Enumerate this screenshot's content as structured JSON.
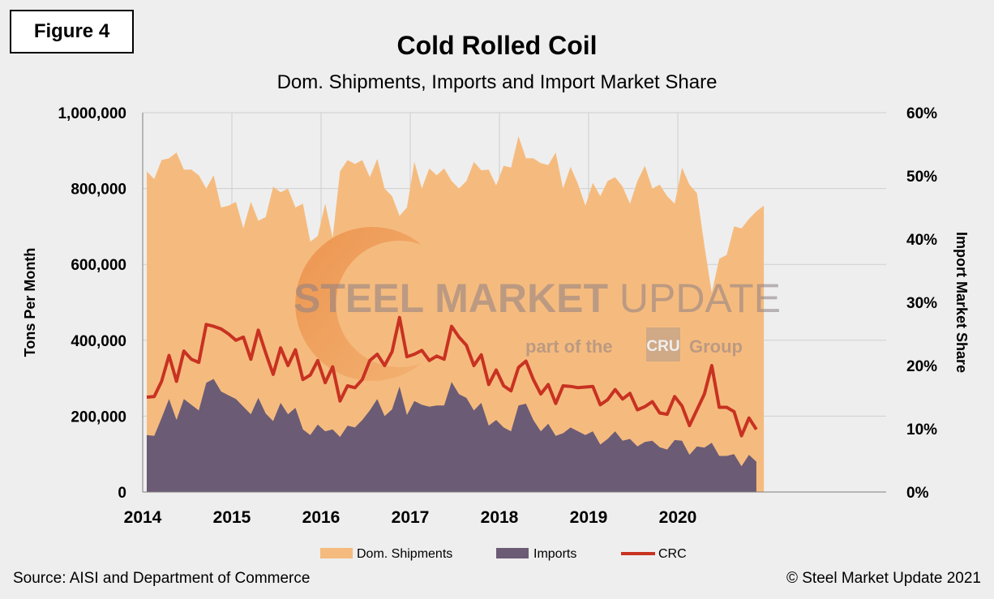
{
  "figure_label": "Figure 4",
  "source": "Source: AISI and Department of Commerce",
  "copyright": "© Steel Market Update 2021",
  "colors": {
    "dom": "#f5bb7e",
    "imports": "#6b5b75",
    "crc": "#c83222",
    "grid": "#cfcfcf",
    "background": "#eeeeee"
  },
  "watermark": {
    "line1a": "STEEL MARKET",
    "line1b": " UPDATE",
    "line2a": "part of the",
    "badge": "CRU",
    "line2b": "Group"
  },
  "chart_data": {
    "type": "area",
    "title": "Cold Rolled Coil",
    "subtitle": "Dom. Shipments, Imports and Import Market Share",
    "ylabel": "Tons Per Month",
    "y2label": "Import Market Share",
    "ylim": [
      0,
      1000000
    ],
    "y2lim": [
      0,
      0.6
    ],
    "yticks": [
      "0",
      "200,000",
      "400,000",
      "600,000",
      "800,000",
      "1,000,000"
    ],
    "y2ticks": [
      "0%",
      "10%",
      "20%",
      "30%",
      "40%",
      "50%",
      "60%"
    ],
    "xticks": [
      "2014",
      "2015",
      "2016",
      "2017",
      "2018",
      "2019",
      "2020"
    ],
    "x_start": "2014-01",
    "grid": true,
    "legend_position": "bottom",
    "series": [
      {
        "name": "Dom. Shipments",
        "type": "area",
        "axis": "left",
        "values": [
          845000,
          825000,
          875000,
          880000,
          895000,
          850000,
          850000,
          835000,
          800000,
          835000,
          750000,
          755000,
          765000,
          695000,
          765000,
          715000,
          725000,
          805000,
          790000,
          800000,
          750000,
          760000,
          660000,
          675000,
          760000,
          670000,
          845000,
          875000,
          865000,
          875000,
          830000,
          878000,
          800000,
          780000,
          728000,
          750000,
          870000,
          800000,
          853000,
          835000,
          853000,
          820000,
          800000,
          820000,
          870000,
          848000,
          850000,
          808000,
          860000,
          855000,
          938000,
          880000,
          880000,
          867000,
          862000,
          895000,
          800000,
          857000,
          812000,
          755000,
          815000,
          780000,
          820000,
          830000,
          805000,
          760000,
          820000,
          860000,
          800000,
          810000,
          780000,
          760000,
          855000,
          810000,
          788000,
          650000,
          525000,
          615000,
          625000,
          700000,
          695000,
          720000,
          740000,
          755000
        ]
      },
      {
        "name": "Imports",
        "type": "area",
        "axis": "left",
        "values": [
          150000,
          148000,
          195000,
          245000,
          190000,
          245000,
          230000,
          215000,
          288000,
          298000,
          265000,
          255000,
          245000,
          225000,
          205000,
          248000,
          207000,
          187000,
          235000,
          205000,
          222000,
          165000,
          150000,
          178000,
          160000,
          165000,
          145000,
          175000,
          170000,
          190000,
          215000,
          245000,
          200000,
          218000,
          278000,
          203000,
          240000,
          230000,
          225000,
          228000,
          228000,
          290000,
          258000,
          248000,
          215000,
          235000,
          175000,
          190000,
          170000,
          160000,
          228000,
          233000,
          190000,
          160000,
          180000,
          148000,
          155000,
          170000,
          160000,
          150000,
          160000,
          125000,
          140000,
          160000,
          135000,
          140000,
          120000,
          132000,
          135000,
          118000,
          112000,
          137000,
          135000,
          98000,
          120000,
          117000,
          130000,
          95000,
          95000,
          100000,
          68000,
          98000,
          80000
        ]
      },
      {
        "name": "CRC",
        "type": "line",
        "axis": "right",
        "values": [
          0.15,
          0.151,
          0.175,
          0.216,
          0.175,
          0.223,
          0.21,
          0.205,
          0.265,
          0.262,
          0.258,
          0.25,
          0.24,
          0.245,
          0.21,
          0.256,
          0.22,
          0.186,
          0.228,
          0.2,
          0.225,
          0.178,
          0.185,
          0.208,
          0.173,
          0.198,
          0.144,
          0.168,
          0.165,
          0.178,
          0.208,
          0.218,
          0.2,
          0.222,
          0.276,
          0.214,
          0.218,
          0.224,
          0.208,
          0.215,
          0.21,
          0.262,
          0.245,
          0.232,
          0.2,
          0.217,
          0.17,
          0.193,
          0.168,
          0.16,
          0.197,
          0.207,
          0.178,
          0.155,
          0.17,
          0.14,
          0.168,
          0.167,
          0.165,
          0.166,
          0.167,
          0.138,
          0.146,
          0.162,
          0.147,
          0.156,
          0.13,
          0.135,
          0.143,
          0.125,
          0.123,
          0.151,
          0.136,
          0.105,
          0.13,
          0.155,
          0.2,
          0.134,
          0.134,
          0.127,
          0.089,
          0.117,
          0.099
        ]
      }
    ]
  }
}
